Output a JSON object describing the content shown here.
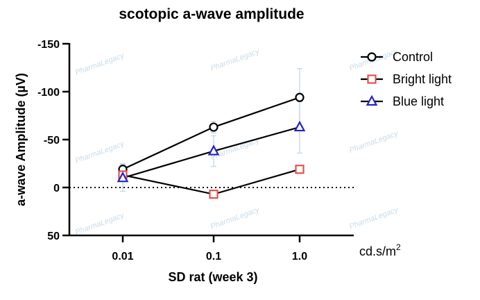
{
  "chart_data": {
    "type": "line",
    "title": "scotopic a-wave amplitude",
    "xlabel": "SD rat (week 3)",
    "x_unit": "cd.s/m",
    "x_unit_sup": "2",
    "ylabel": "a-wave Amplitude (µV)",
    "categories": [
      "0.01",
      "0.1",
      "1.0"
    ],
    "y_axis_reversed": true,
    "ylim": [
      50,
      -150
    ],
    "yticks": [
      {
        "value": -150,
        "label": "-150"
      },
      {
        "value": -100,
        "label": "-100"
      },
      {
        "value": -50,
        "label": "-50"
      },
      {
        "value": 0,
        "label": "0"
      },
      {
        "value": 50,
        "label": "50"
      }
    ],
    "zero_reference_line": "dotted",
    "grid": false,
    "legend_position": "top-right",
    "series": [
      {
        "name": "Control",
        "marker": "circle",
        "color": "#000000",
        "values": [
          -19,
          -63,
          -94
        ],
        "error": [
          6,
          6,
          30
        ]
      },
      {
        "name": "Bright light",
        "marker": "square",
        "color": "#e0534d",
        "values": [
          -13,
          7,
          -19
        ],
        "error": [
          2,
          2,
          3
        ]
      },
      {
        "name": "Blue light",
        "marker": "triangle",
        "color": "#2222cc",
        "values": [
          -10,
          -38,
          -63
        ],
        "error": [
          14,
          16,
          27
        ]
      }
    ],
    "error_bar_color": "#c5dcf0"
  },
  "watermark_text": "PharmaLegacy"
}
